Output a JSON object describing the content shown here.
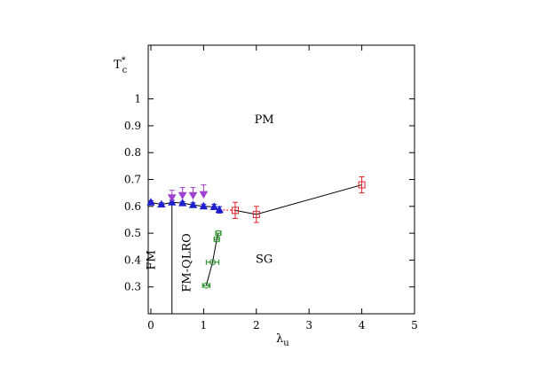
{
  "chart_data": {
    "type": "scatter",
    "title": "",
    "xlabel": "λ",
    "xlabel_sub": "u",
    "ylabel": "T",
    "ylabel_sup": "*",
    "ylabel_sub": "c",
    "xlim": [
      -0.05,
      5
    ],
    "ylim": [
      0.2,
      1.2
    ],
    "xticks": [
      "0",
      "1",
      "2",
      "3",
      "4",
      "5"
    ],
    "xtick_values": [
      0,
      1,
      2,
      3,
      4,
      5
    ],
    "yticks": [
      "0.3",
      "0.4",
      "0.5",
      "0.6",
      "0.7",
      "0.8",
      "0.9",
      "1"
    ],
    "ytick_values": [
      0.3,
      0.4,
      0.5,
      0.6,
      0.7,
      0.8,
      0.9,
      1.0
    ],
    "grid": false,
    "legend": "none",
    "region_labels": [
      {
        "text": "PM",
        "x": 2.15,
        "y": 0.91,
        "rotate": false
      },
      {
        "text": "SG",
        "x": 2.15,
        "y": 0.39,
        "rotate": false
      },
      {
        "text": "FM",
        "x": 0.08,
        "y": 0.4,
        "rotate": true
      },
      {
        "text": "FM-QLRO",
        "x": 0.75,
        "y": 0.39,
        "rotate": true
      }
    ],
    "boundary_line": {
      "x": 0.4,
      "y_from": 0.2,
      "y_to": 0.62
    },
    "series": [
      {
        "marker": "triangle-up",
        "color": "#1f1fd1",
        "connect": true,
        "points": [
          {
            "x": 0.0,
            "y": 0.615,
            "err": 0.006
          },
          {
            "x": 0.2,
            "y": 0.607,
            "err": 0.006
          },
          {
            "x": 0.4,
            "y": 0.615,
            "err": 0.008
          },
          {
            "x": 0.6,
            "y": 0.612,
            "err": 0.006
          },
          {
            "x": 0.8,
            "y": 0.605,
            "err": 0.008
          },
          {
            "x": 1.0,
            "y": 0.6,
            "err": 0.008
          },
          {
            "x": 1.2,
            "y": 0.598,
            "err": 0.01
          },
          {
            "x": 1.3,
            "y": 0.587,
            "err": 0.012
          }
        ]
      },
      {
        "marker": "triangle-down",
        "color": "#a040d0",
        "connect": false,
        "points": [
          {
            "x": 0.4,
            "y": 0.63,
            "err_up": 0.03
          },
          {
            "x": 0.6,
            "y": 0.638,
            "err_up": 0.032
          },
          {
            "x": 0.8,
            "y": 0.638,
            "err_up": 0.032
          },
          {
            "x": 1.0,
            "y": 0.642,
            "err_up": 0.038
          }
        ]
      },
      {
        "marker": "square",
        "color": "#e0202a",
        "connect": true,
        "points": [
          {
            "x": 1.6,
            "y": 0.585,
            "err": 0.03
          },
          {
            "x": 2.0,
            "y": 0.57,
            "err": 0.03
          },
          {
            "x": 4.0,
            "y": 0.68,
            "err": 0.03
          }
        ]
      },
      {
        "marker": "circle",
        "color": "#1a8a1a",
        "connect": true,
        "points": [
          {
            "x": 1.05,
            "y": 0.305,
            "xerr": 0.07
          },
          {
            "x": 1.17,
            "y": 0.392,
            "xerr": 0.12
          },
          {
            "x": 1.25,
            "y": 0.477,
            "xerr": 0.05
          },
          {
            "x": 1.28,
            "y": 0.5,
            "xerr": 0.05
          }
        ]
      }
    ],
    "dashed_connector": {
      "from": {
        "x": 1.3,
        "y": 0.587
      },
      "to": {
        "x": 1.6,
        "y": 0.585
      },
      "color": "#e0202a"
    }
  }
}
